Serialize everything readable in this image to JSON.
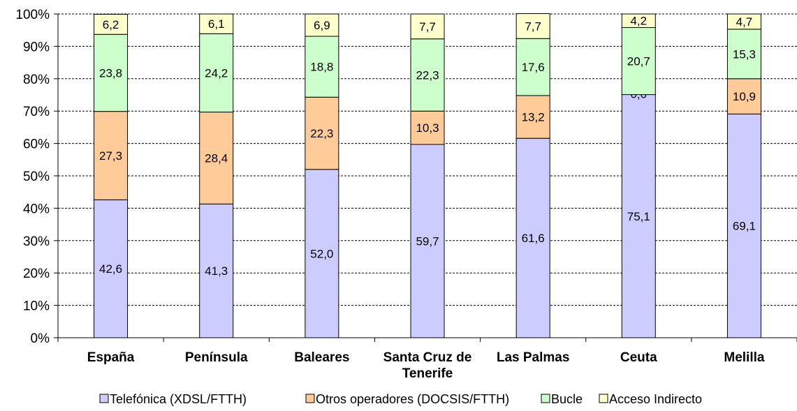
{
  "chart_data": {
    "type": "bar",
    "stacked": true,
    "percent": true,
    "categories": [
      [
        "España"
      ],
      [
        "Península"
      ],
      [
        "Baleares"
      ],
      [
        "Santa Cruz de",
        "Tenerife"
      ],
      [
        "Las Palmas"
      ],
      [
        "Ceuta"
      ],
      [
        "Melilla"
      ]
    ],
    "series": [
      {
        "name": "Telefónica (XDSL/FTTH)",
        "color": "#ccccff",
        "values": [
          42.6,
          41.3,
          52.0,
          59.7,
          61.6,
          75.1,
          69.1
        ],
        "labels": [
          "42,6",
          "41,3",
          "52,0",
          "59,7",
          "61,6",
          "75,1",
          "69,1"
        ]
      },
      {
        "name": "Otros operadores (DOCSIS/FTTH)",
        "color": "#ffcc99",
        "values": [
          27.3,
          28.4,
          22.3,
          10.3,
          13.2,
          0.0,
          10.9
        ],
        "labels": [
          "27,3",
          "28,4",
          "22,3",
          "10,3",
          "13,2",
          "0,0",
          "10,9"
        ]
      },
      {
        "name": "Bucle",
        "color": "#ccffcc",
        "values": [
          23.8,
          24.2,
          18.8,
          22.3,
          17.6,
          20.7,
          15.3
        ],
        "labels": [
          "23,8",
          "24,2",
          "18,8",
          "22,3",
          "17,6",
          "20,7",
          "15,3"
        ]
      },
      {
        "name": "Acceso Indirecto",
        "color": "#ffffcc",
        "values": [
          6.2,
          6.1,
          6.9,
          7.7,
          7.7,
          4.2,
          4.7
        ],
        "labels": [
          "6,2",
          "6,1",
          "6,9",
          "7,7",
          "7,7",
          "4,2",
          "4,7"
        ]
      }
    ],
    "yticks": [
      "0%",
      "10%",
      "20%",
      "30%",
      "40%",
      "50%",
      "60%",
      "70%",
      "80%",
      "90%",
      "100%"
    ],
    "ylim": [
      0,
      100
    ],
    "grid": true,
    "legend_position": "bottom"
  }
}
